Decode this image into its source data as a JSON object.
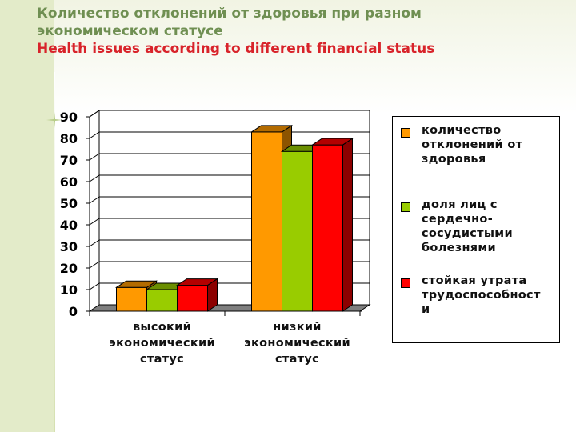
{
  "title": {
    "ru_line1": "Количество отклонений от здоровья при разном",
    "ru_line2": "экономическом статусе",
    "en": "Health issues according to different financial status"
  },
  "chart_data": {
    "type": "bar",
    "categories": [
      [
        "высокий",
        "экономический",
        "статус"
      ],
      [
        "низкий",
        "экономический",
        "статус"
      ]
    ],
    "series": [
      {
        "name": "количество отклонений от здоровья",
        "legend_lines": [
          "количество",
          "отклонений от",
          "здоровья"
        ],
        "values": [
          11,
          83
        ],
        "color": "#ff9900"
      },
      {
        "name": "доля лиц с сердечно-сосудистыми болезнями",
        "legend_lines": [
          "доля лиц с",
          "сердечно-",
          "сосудистыми",
          "болезнями"
        ],
        "values": [
          10,
          74
        ],
        "color": "#99cc00"
      },
      {
        "name": "стойкая утрата трудоспособности",
        "legend_lines": [
          "стойкая утрата",
          "трудоспособност",
          "и"
        ],
        "values": [
          12,
          77
        ],
        "color": "#ff0000"
      }
    ],
    "yticks": [
      "0",
      "10",
      "20",
      "30",
      "40",
      "50",
      "60",
      "70",
      "80",
      "90"
    ],
    "ylim": [
      0,
      90
    ],
    "grid": true,
    "legend_position": "right",
    "style": "3d"
  }
}
